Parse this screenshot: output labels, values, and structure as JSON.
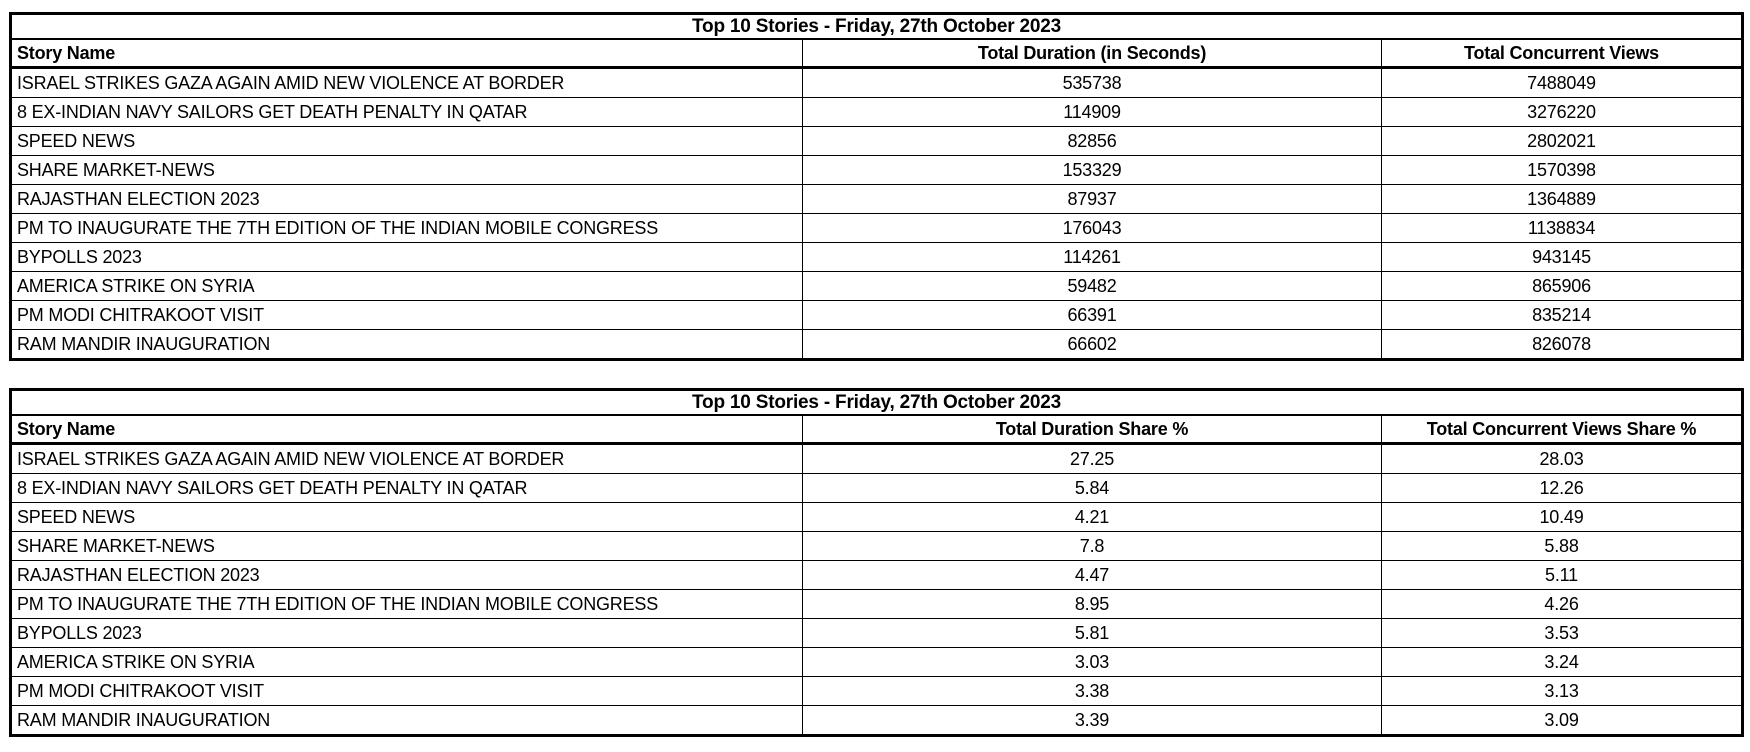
{
  "tables": [
    {
      "title": "Top 10 Stories - Friday, 27th October 2023",
      "columns": [
        "Story Name",
        "Total Duration (in Seconds)",
        "Total Concurrent Views"
      ],
      "rows": [
        [
          "ISRAEL STRIKES GAZA AGAIN AMID NEW VIOLENCE AT BORDER",
          "535738",
          "7488049"
        ],
        [
          "8 EX-INDIAN NAVY SAILORS GET DEATH PENALTY IN QATAR",
          "114909",
          "3276220"
        ],
        [
          "SPEED NEWS",
          "82856",
          "2802021"
        ],
        [
          "SHARE MARKET-NEWS",
          "153329",
          "1570398"
        ],
        [
          "RAJASTHAN ELECTION 2023",
          "87937",
          "1364889"
        ],
        [
          "PM TO INAUGURATE THE 7TH EDITION OF THE INDIAN MOBILE CONGRESS",
          "176043",
          "1138834"
        ],
        [
          "BYPOLLS 2023",
          "114261",
          "943145"
        ],
        [
          "AMERICA STRIKE ON SYRIA",
          "59482",
          "865906"
        ],
        [
          "PM MODI CHITRAKOOT VISIT",
          "66391",
          "835214"
        ],
        [
          "RAM MANDIR INAUGURATION",
          "66602",
          "826078"
        ]
      ]
    },
    {
      "title": "Top 10 Stories - Friday, 27th October 2023",
      "columns": [
        "Story Name",
        "Total Duration Share %",
        "Total Concurrent Views Share %"
      ],
      "rows": [
        [
          "ISRAEL STRIKES GAZA AGAIN AMID NEW VIOLENCE AT BORDER",
          "27.25",
          "28.03"
        ],
        [
          "8 EX-INDIAN NAVY SAILORS GET DEATH PENALTY IN QATAR",
          "5.84",
          "12.26"
        ],
        [
          "SPEED NEWS",
          "4.21",
          "10.49"
        ],
        [
          "SHARE MARKET-NEWS",
          "7.8",
          "5.88"
        ],
        [
          "RAJASTHAN ELECTION 2023",
          "4.47",
          "5.11"
        ],
        [
          "PM TO INAUGURATE THE 7TH EDITION OF THE INDIAN MOBILE CONGRESS",
          "8.95",
          "4.26"
        ],
        [
          "BYPOLLS 2023",
          "5.81",
          "3.53"
        ],
        [
          "AMERICA STRIKE ON SYRIA",
          "3.03",
          "3.24"
        ],
        [
          "PM MODI CHITRAKOOT VISIT",
          "3.38",
          "3.13"
        ],
        [
          "RAM MANDIR INAUGURATION",
          "3.39",
          "3.09"
        ]
      ]
    }
  ],
  "colors": {
    "border": "#000000",
    "text": "#000000",
    "background": "#ffffff"
  }
}
